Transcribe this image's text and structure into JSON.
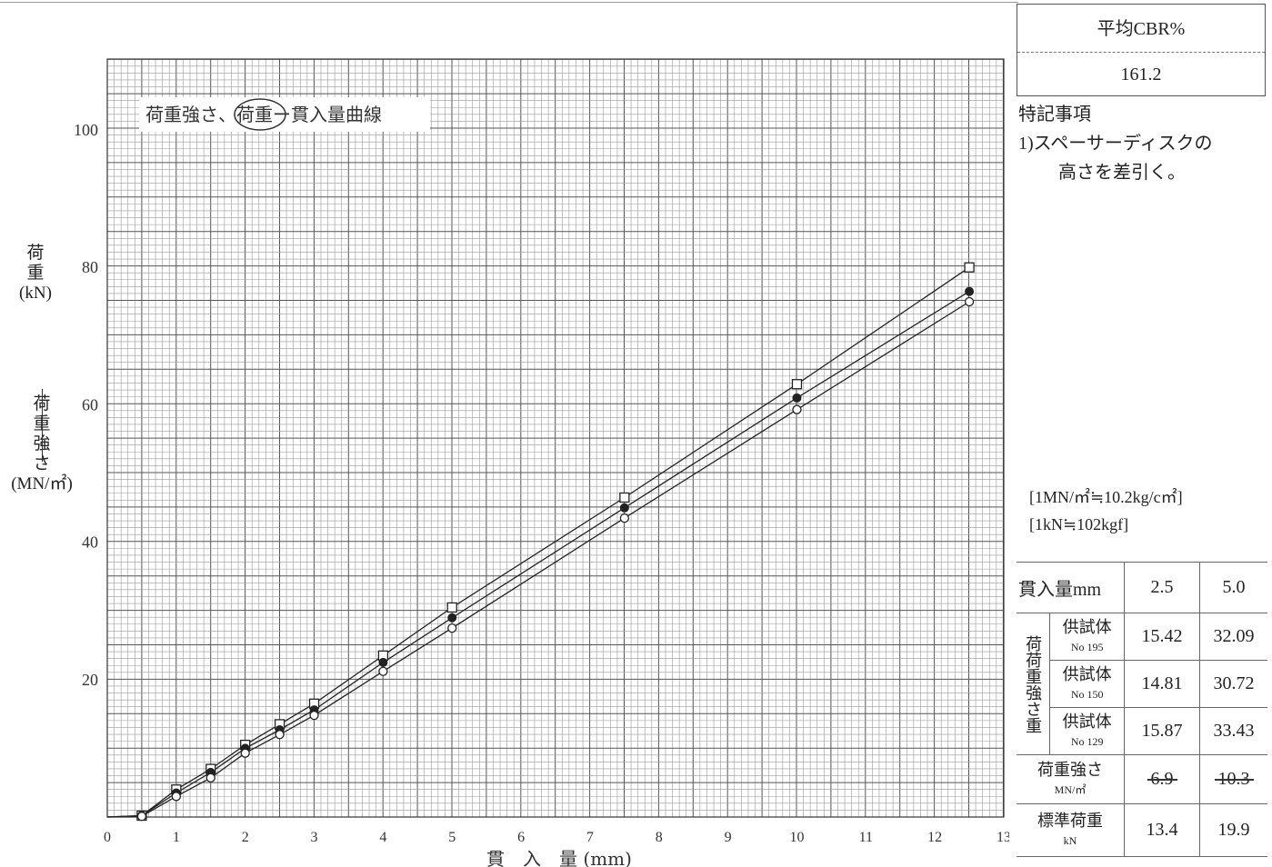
{
  "chart_data": {
    "type": "scatter",
    "title": "荷重強さ、荷重ー貫入量曲線",
    "xlabel": "貫　入　量 (mm)",
    "ylabel_top": [
      "荷",
      "重",
      "(kN)"
    ],
    "ylabel_bottom": [
      "荷",
      "重",
      "強",
      "さ",
      "(MN/㎡)"
    ],
    "xlim": [
      0,
      13
    ],
    "ylim": [
      0,
      100
    ],
    "x_ticks": [
      "0",
      "1",
      "2",
      "3",
      "4",
      "5",
      "6",
      "7",
      "8",
      "9",
      "10",
      "11",
      "12",
      "13"
    ],
    "y_ticks": [
      "20",
      "40",
      "60",
      "80",
      "100"
    ],
    "grid": true,
    "series": [
      {
        "marker": "square",
        "x": [
          0,
          0.5,
          1,
          1.5,
          2,
          2.5,
          3,
          4,
          5,
          7.5,
          10,
          12.5
        ],
        "y": [
          0,
          0.2,
          4,
          7,
          10.5,
          13.5,
          16.5,
          23.5,
          30.5,
          46.5,
          63,
          80
        ]
      },
      {
        "marker": "filled-circle",
        "x": [
          0,
          0.5,
          1,
          1.5,
          2,
          2.5,
          3,
          4,
          5,
          7.5,
          10,
          12.5
        ],
        "y": [
          0,
          0.2,
          3.5,
          6.5,
          10,
          12.7,
          15.6,
          22.5,
          29,
          45,
          61,
          76.5
        ]
      },
      {
        "marker": "open-circle",
        "x": [
          0,
          0.5,
          1,
          1.5,
          2,
          2.5,
          3,
          4,
          5,
          7.5,
          10,
          12.5
        ],
        "y": [
          0,
          0.1,
          3,
          5.7,
          9.3,
          12,
          14.8,
          21.2,
          27.5,
          43.5,
          59.3,
          75
        ]
      }
    ]
  },
  "cbr": {
    "header": "平均CBR%",
    "value": "161.2"
  },
  "notes": {
    "title": "特記事項",
    "line1": "1)スペーサーディスクの",
    "line2": "高さを差引く。"
  },
  "units": {
    "line1": "[1MN/㎡≒10.2kg/c㎡]",
    "line2": "[1kN≒102kgf]"
  },
  "table": {
    "header_label": "貫入量mm",
    "col1": "2.5",
    "col2": "5.0",
    "group_label": "荷荷重強さ重",
    "specimen_label": "供試体",
    "rows": [
      {
        "no": "No 195",
        "v1": "15.42",
        "v2": "32.09"
      },
      {
        "no": "No 150",
        "v1": "14.81",
        "v2": "30.72"
      },
      {
        "no": "No 129",
        "v1": "15.87",
        "v2": "33.43"
      }
    ],
    "strength_label": "荷重強さ",
    "strength_unit": "MN/㎡",
    "strength_v1": "6.9",
    "strength_v2": "10.3",
    "std_label": "標準荷重",
    "std_unit": "kN",
    "std_v1": "13.4",
    "std_v2": "19.9"
  }
}
